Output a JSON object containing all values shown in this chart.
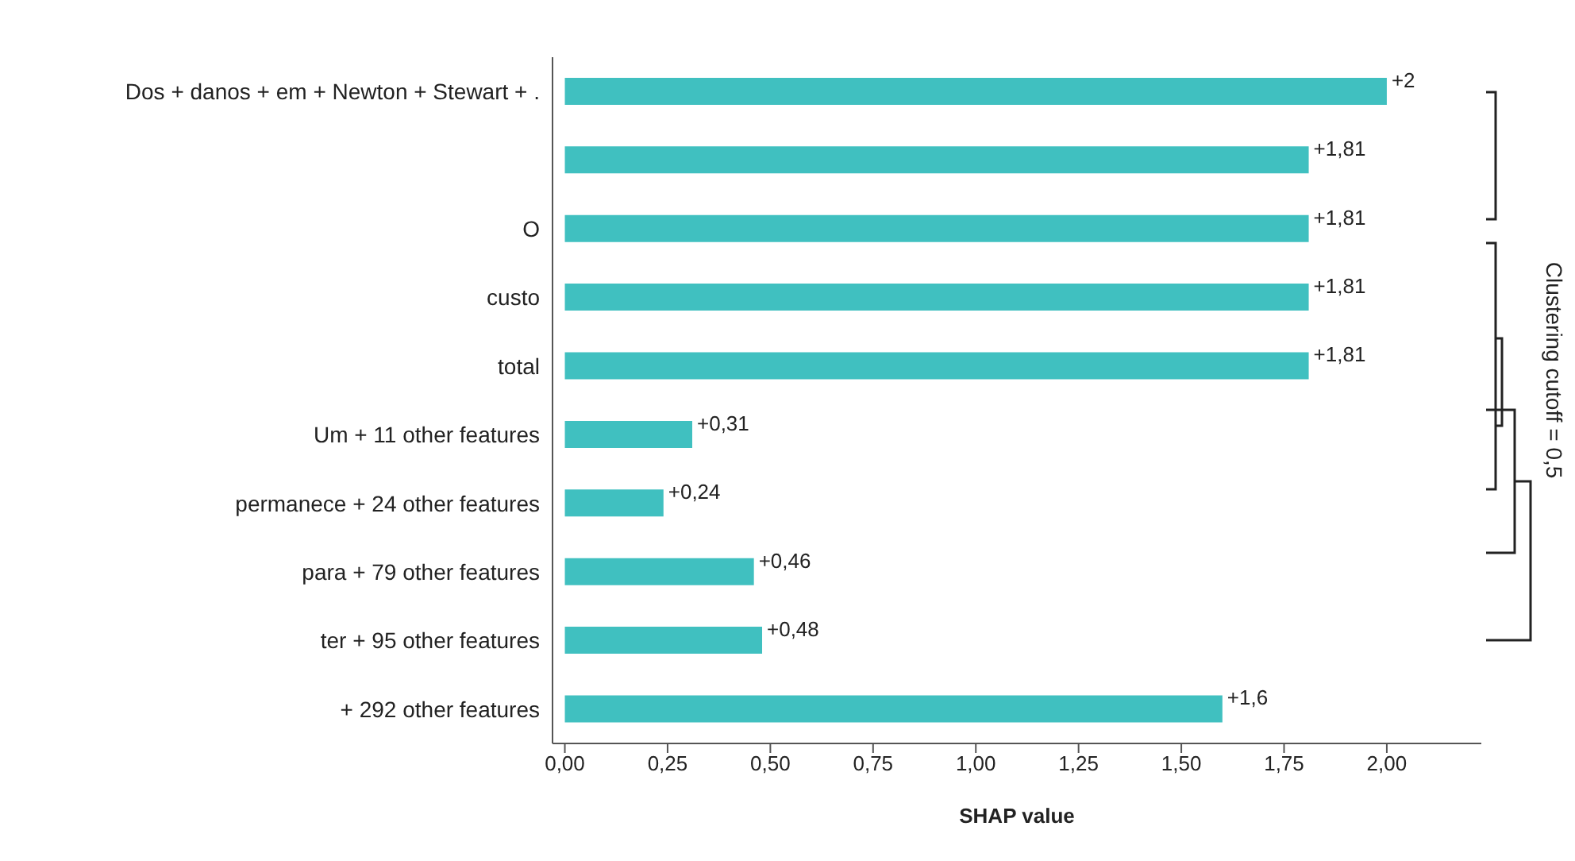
{
  "chart_data": {
    "type": "bar",
    "orientation": "horizontal",
    "categories": [
      "Dos + danos + em + Newton + Stewart + .",
      null,
      "O",
      "custo",
      "total",
      "Um + 11 other features",
      "permanece + 24 other features",
      "para + 79 other features",
      "ter + 95 other features",
      "+ 292 other features"
    ],
    "values": [
      2,
      1.81,
      1.81,
      1.81,
      1.81,
      0.31,
      0.24,
      0.46,
      0.48,
      1.6
    ],
    "value_labels": [
      "+2",
      "+1,81",
      "+1,81",
      "+1,81",
      "+1,81",
      "+0,31",
      "+0,24",
      "+0,46",
      "+0,48",
      "+1,6"
    ],
    "color": "#40c0c0",
    "xlabel": "SHAP value",
    "xlim": [
      -0.03,
      2.23
    ],
    "xticks": [
      {
        "value": 0,
        "label": "0,00"
      },
      {
        "value": 0.25,
        "label": "0,25"
      },
      {
        "value": 0.5,
        "label": "0,50"
      },
      {
        "value": 0.75,
        "label": "0,75"
      },
      {
        "value": 1,
        "label": "1,00"
      },
      {
        "value": 1.25,
        "label": "1,25"
      },
      {
        "value": 1.5,
        "label": "1,50"
      },
      {
        "value": 1.75,
        "label": "1,75"
      },
      {
        "value": 2,
        "label": "2,00"
      }
    ],
    "annotations": [
      "Clustering cutoff = 0,5"
    ]
  }
}
